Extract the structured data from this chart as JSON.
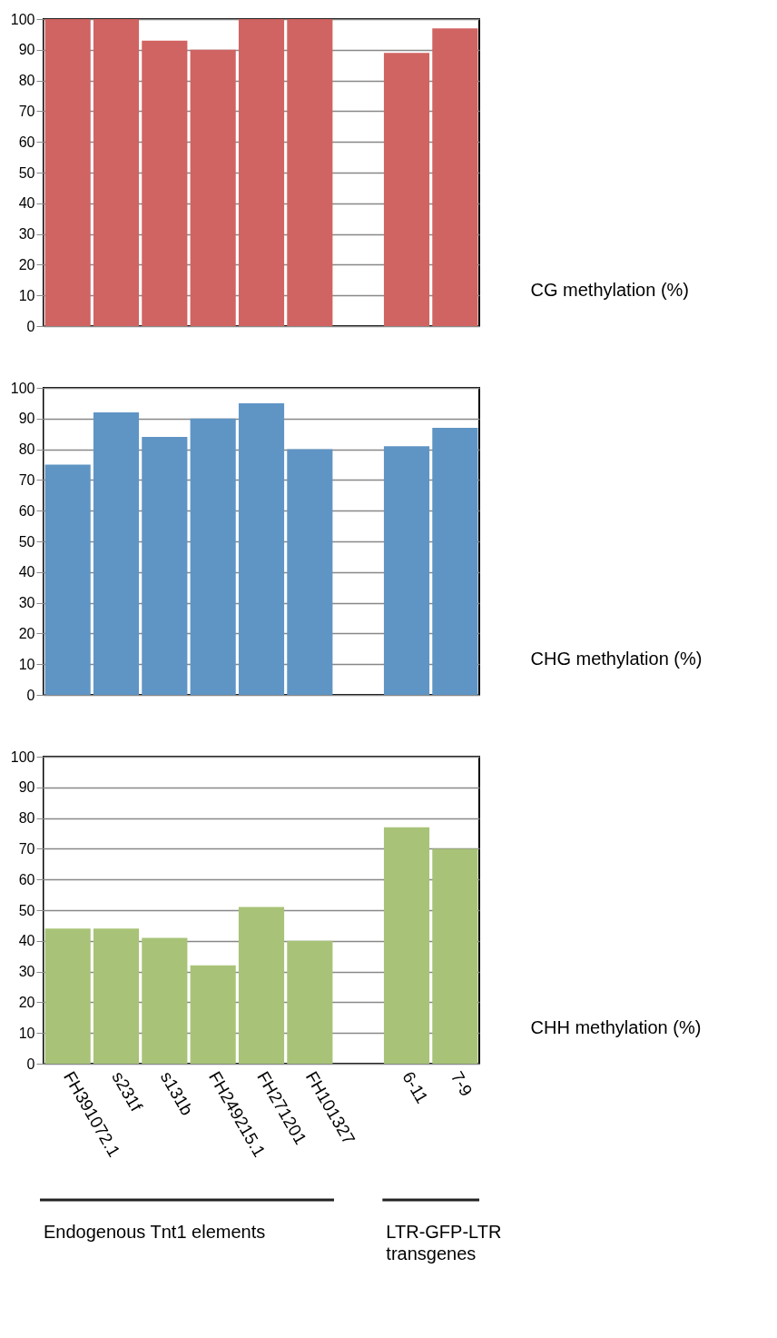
{
  "chart_data": [
    {
      "type": "bar",
      "values": [
        100,
        100,
        93,
        90,
        100,
        100,
        null,
        89,
        97
      ],
      "color": "#d06462",
      "ylim": [
        0,
        100
      ],
      "yticks": [
        0,
        10,
        20,
        30,
        40,
        50,
        60,
        70,
        80,
        90,
        100
      ],
      "grid": "y",
      "ylabel": "CG methylation (%)",
      "tick_labels": "y"
    },
    {
      "type": "bar",
      "values": [
        75,
        92,
        84,
        90,
        95,
        80,
        null,
        81,
        87
      ],
      "color": "#5f95c4",
      "ylim": [
        0,
        100
      ],
      "yticks": [
        0,
        10,
        20,
        30,
        40,
        50,
        60,
        70,
        80,
        90,
        100
      ],
      "grid": "y",
      "ylabel": "CHG methylation (%)",
      "tick_labels": "y"
    },
    {
      "type": "bar",
      "categories": [
        "FH391072.1",
        "s231f",
        "s131b",
        "FH249215.1",
        "FH271201",
        "FH101327",
        null,
        "6-11",
        "7-9"
      ],
      "values": [
        44,
        44,
        41,
        32,
        51,
        40,
        null,
        77,
        70
      ],
      "color": "#a8c377",
      "ylim": [
        0,
        100
      ],
      "yticks": [
        0,
        10,
        20,
        30,
        40,
        50,
        60,
        70,
        80,
        90,
        100
      ],
      "grid": "y",
      "ylabel": "CHH methylation (%)",
      "annotations": [
        "Endogenous Tnt1 elements",
        "LTR-GFP-LTR transgenes"
      ]
    }
  ]
}
